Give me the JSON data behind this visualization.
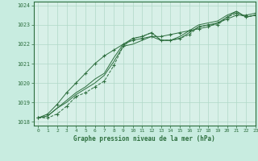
{
  "title": "Graphe pression niveau de la mer (hPa)",
  "background_color": "#c8ece0",
  "plot_bg_color": "#d8f0e8",
  "grid_color": "#b0d8c8",
  "line_color": "#2d6e3e",
  "xlim": [
    -0.5,
    23
  ],
  "ylim": [
    1017.8,
    1024.2
  ],
  "xticks": [
    0,
    1,
    2,
    3,
    4,
    5,
    6,
    7,
    8,
    9,
    10,
    11,
    12,
    13,
    14,
    15,
    16,
    17,
    18,
    19,
    20,
    21,
    22,
    23
  ],
  "yticks": [
    1018,
    1019,
    1020,
    1021,
    1022,
    1023,
    1024
  ],
  "series": [
    {
      "y": [
        1018.2,
        1018.2,
        1018.4,
        1018.8,
        1019.3,
        1019.5,
        1019.8,
        1020.1,
        1020.9,
        1021.9,
        1022.3,
        1022.4,
        1022.6,
        1022.2,
        1022.2,
        1022.3,
        1022.5,
        1022.9,
        1023.0,
        1023.0,
        1023.4,
        1023.6,
        1023.4,
        1023.5
      ],
      "marker": true,
      "linestyle": "--",
      "linewidth": 0.7
    },
    {
      "y": [
        1018.2,
        1018.3,
        1018.7,
        1019.0,
        1019.4,
        1019.7,
        1020.0,
        1020.4,
        1021.1,
        1021.9,
        1022.0,
        1022.2,
        1022.4,
        1022.2,
        1022.2,
        1022.3,
        1022.6,
        1022.9,
        1023.0,
        1023.1,
        1023.4,
        1023.7,
        1023.4,
        1023.5
      ],
      "marker": false,
      "linestyle": "-",
      "linewidth": 0.7
    },
    {
      "y": [
        1018.2,
        1018.3,
        1018.7,
        1019.1,
        1019.5,
        1019.8,
        1020.2,
        1020.5,
        1021.3,
        1022.0,
        1022.3,
        1022.4,
        1022.6,
        1022.2,
        1022.2,
        1022.4,
        1022.7,
        1023.0,
        1023.1,
        1023.2,
        1023.5,
        1023.7,
        1023.4,
        1023.5
      ],
      "marker": false,
      "linestyle": "-",
      "linewidth": 0.7
    },
    {
      "y": [
        1018.2,
        1018.4,
        1018.9,
        1019.5,
        1020.0,
        1020.5,
        1021.0,
        1021.4,
        1021.7,
        1022.0,
        1022.2,
        1022.3,
        1022.4,
        1022.4,
        1022.5,
        1022.6,
        1022.7,
        1022.8,
        1022.9,
        1023.1,
        1023.3,
        1023.5,
        1023.5,
        1023.6
      ],
      "marker": true,
      "linestyle": "-",
      "linewidth": 0.7
    }
  ]
}
